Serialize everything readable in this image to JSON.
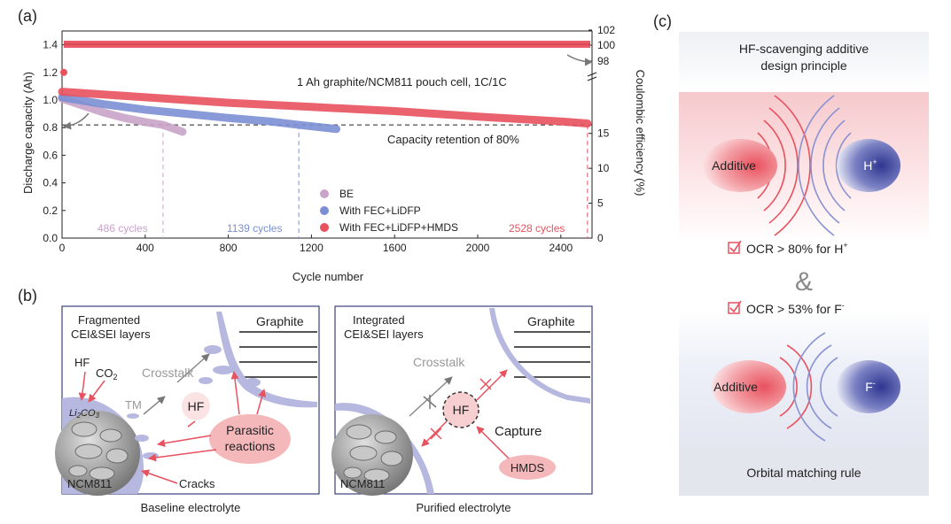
{
  "panel_labels": {
    "a": "(a)",
    "b": "(b)",
    "c": "(c)"
  },
  "chart_data": {
    "type": "scatter",
    "xlabel": "Cycle number",
    "ylabel_left": "Discharge capacity (Ah)",
    "ylabel_right": "Coulombic efficiency (%)",
    "x_ticks": [
      "0",
      "400",
      "800",
      "1200",
      "1600",
      "2000",
      "2400"
    ],
    "y_ticks_left": [
      "0.0",
      "0.2",
      "0.4",
      "0.6",
      "0.8",
      "1.0",
      "1.2",
      "1.4"
    ],
    "y_ticks_right_lower": [
      "0",
      "5",
      "10",
      "15"
    ],
    "y_ticks_right_upper": [
      "98",
      "100",
      "102"
    ],
    "xlim": [
      0,
      2550
    ],
    "ylim_left": [
      0,
      1.5
    ],
    "cell_label": "1 Ah graphite/NCM811 pouch cell, 1C/1C",
    "retention_label": "Capacity retention of 80%",
    "retention_level": 0.82,
    "series": [
      {
        "name": "BE",
        "color": "#c9a3c9",
        "capacity": {
          "x": [
            0,
            100,
            200,
            300,
            400,
            486,
            580
          ],
          "y": [
            1.01,
            0.96,
            0.91,
            0.87,
            0.84,
            0.82,
            0.77
          ]
        },
        "cycles_label": "486 cycles",
        "cycles": 486
      },
      {
        "name": "With FEC+LiDFP",
        "color": "#7b8fd4",
        "capacity": {
          "x": [
            0,
            200,
            400,
            600,
            800,
            1000,
            1139,
            1320
          ],
          "y": [
            1.02,
            0.97,
            0.93,
            0.9,
            0.87,
            0.845,
            0.82,
            0.79
          ]
        },
        "cycles_label": "1139 cycles",
        "cycles": 1139
      },
      {
        "name": "With FEC+LiDFP+HMDS",
        "color": "#e8515e",
        "capacity": {
          "x": [
            0,
            400,
            800,
            1200,
            1600,
            2000,
            2400,
            2528
          ],
          "y": [
            1.06,
            1.02,
            0.98,
            0.95,
            0.92,
            0.88,
            0.845,
            0.83
          ]
        },
        "cycles_label": "2528 cycles",
        "cycles": 2528
      }
    ]
  },
  "panel_b_left": {
    "title1": "Fragmented",
    "title2": "CEI&SEI layers",
    "graphite": "Graphite",
    "hf": "HF",
    "co2": "CO",
    "co2_sub": "2",
    "li2co3_a": "Li",
    "li2co3_b": "2",
    "li2co3_c": "CO",
    "li2co3_d": "3",
    "crosstalk": "Crosstalk",
    "tm": "TM",
    "hf_center": "HF",
    "parasitic1": "Parasitic",
    "parasitic2": "reactions",
    "ncm": "NCM811",
    "cracks": "Cracks",
    "caption": "Baseline electrolyte"
  },
  "panel_b_right": {
    "title1": "Integrated",
    "title2": "CEI&SEI layers",
    "graphite": "Graphite",
    "crosstalk": "Crosstalk",
    "hf": "HF",
    "capture": "Capture",
    "hmds": "HMDS",
    "ncm": "NCM811",
    "caption": "Purified electrolyte"
  },
  "panel_c": {
    "header1": "HF-scavenging additive",
    "header2": "design principle",
    "additive_top": "Additive",
    "ion_top": "H",
    "ion_top_sup": "+",
    "check1_a": "OCR > 80% for H",
    "check1_sup": "+",
    "amp": "&",
    "check2_a": "OCR > 53% for F",
    "check2_sup": "-",
    "additive_bottom": "Additive",
    "ion_bottom": "F",
    "ion_bottom_sup": "-",
    "footer": "Orbital matching rule"
  },
  "colors": {
    "red": "#e8515e",
    "blue": "#7b8fd4",
    "purple": "#c9a3c9",
    "dark_blue": "#3a3f9a"
  }
}
